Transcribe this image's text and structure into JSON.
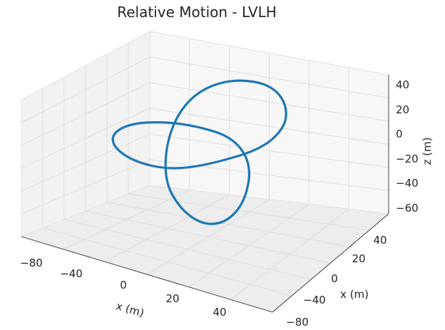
{
  "chart_data": {
    "type": "line3d",
    "title": "Relative Motion - LVLH",
    "axes": {
      "x_front": {
        "label": "x (m)",
        "ticks": [
          -80,
          -40,
          0,
          20,
          40
        ],
        "tick_labels": [
          "−80",
          "−40",
          "0",
          "20",
          "40"
        ]
      },
      "x_right": {
        "label": "x (m)",
        "ticks": [
          -80,
          -40,
          0,
          20,
          40
        ],
        "tick_labels": [
          "−80",
          "−40",
          "0",
          "20",
          "40"
        ]
      },
      "z": {
        "label": "z (m)",
        "ticks": [
          40,
          20,
          0,
          -20,
          -40,
          -60
        ],
        "tick_labels": [
          "40",
          "20",
          "0",
          "−20",
          "−40",
          "−60"
        ]
      }
    },
    "grid": true,
    "series": [
      {
        "color": "#1f77b4",
        "description_points": "closed figure-eight trajectory",
        "points": [
          [
            0,
            0,
            5
          ],
          [
            20,
            10,
            25
          ],
          [
            40,
            20,
            40
          ],
          [
            50,
            35,
            30
          ],
          [
            45,
            45,
            10
          ],
          [
            25,
            40,
            -10
          ],
          [
            5,
            20,
            -20
          ],
          [
            -15,
            0,
            -15
          ],
          [
            -35,
            -20,
            0
          ],
          [
            -50,
            -30,
            10
          ],
          [
            -40,
            -25,
            5
          ],
          [
            -20,
            -10,
            -10
          ],
          [
            0,
            0,
            -30
          ],
          [
            15,
            10,
            -50
          ],
          [
            20,
            15,
            -60
          ],
          [
            10,
            10,
            -55
          ],
          [
            0,
            5,
            -30
          ],
          [
            0,
            0,
            5
          ]
        ]
      }
    ]
  }
}
